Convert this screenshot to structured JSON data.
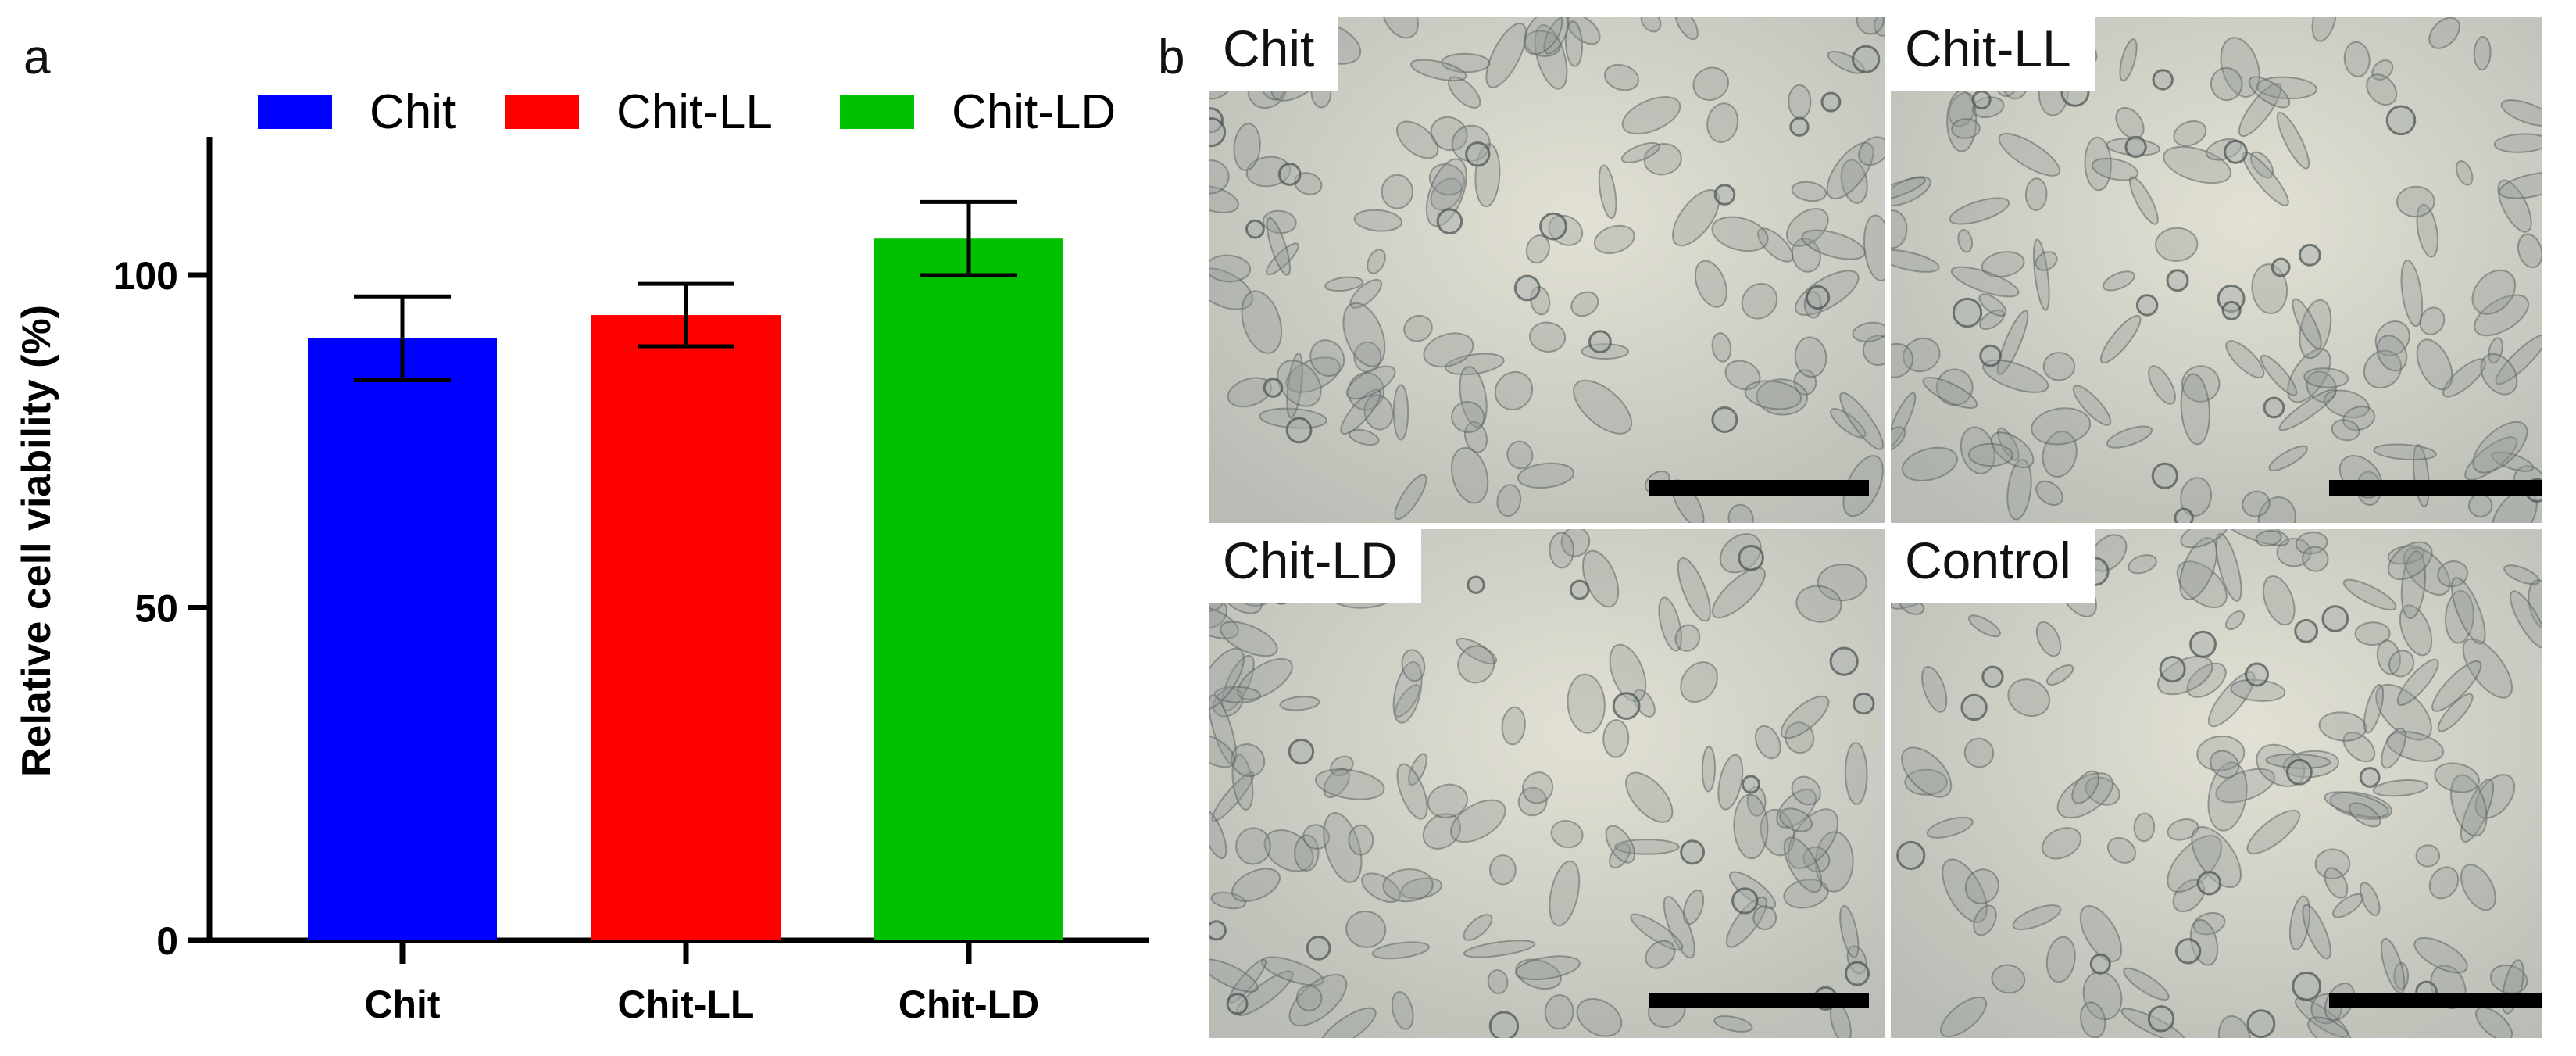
{
  "panel_a_label": "a",
  "panel_b_label": "b",
  "chart_data": {
    "type": "bar",
    "categories": [
      "Chit",
      "Chit-LL",
      "Chit-LD"
    ],
    "values": [
      90.5,
      94,
      105.5
    ],
    "errors": [
      6.3,
      4.7,
      5.5
    ],
    "colors": [
      "#0000ff",
      "#ff0000",
      "#00c000"
    ],
    "legend": [
      "Chit",
      "Chit-LL",
      "Chit-LD"
    ],
    "legend_position": "top",
    "ylabel": "Relative cell viability  (%)",
    "xlabel": "",
    "yticks": [
      0,
      50,
      100
    ],
    "ylim": [
      0,
      121
    ]
  },
  "micrographs": [
    {
      "label": "Chit"
    },
    {
      "label": "Chit-LL"
    },
    {
      "label": "Chit-LD"
    },
    {
      "label": "Control"
    }
  ]
}
